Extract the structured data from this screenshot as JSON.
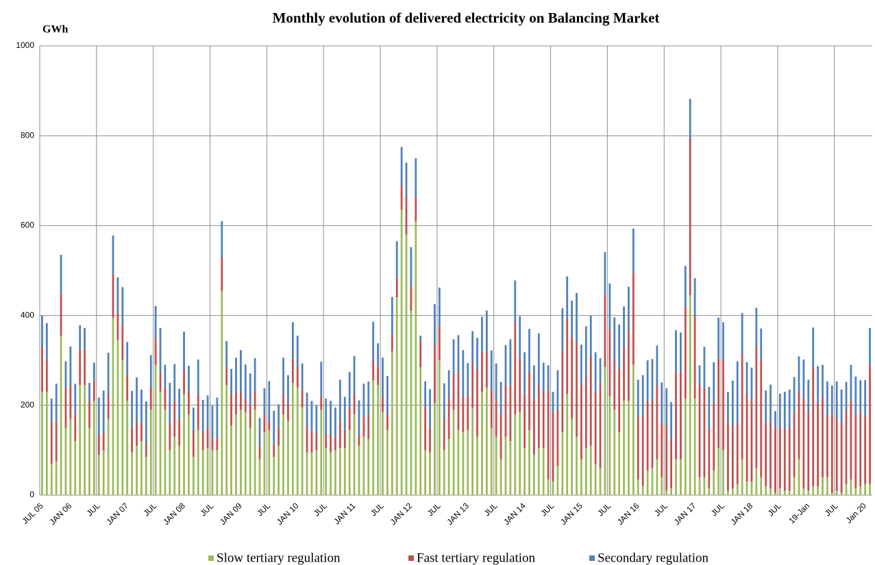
{
  "chart_data": {
    "type": "stacked_bar",
    "title": "Monthly evolution of delivered electricity on Balancing Market",
    "y_label": "GWh",
    "categories": [
      "JUL 05",
      null,
      null,
      null,
      null,
      null,
      "JAN 06",
      null,
      null,
      null,
      null,
      null,
      "JUL",
      null,
      null,
      null,
      null,
      null,
      "JAN 07",
      null,
      null,
      null,
      null,
      null,
      "JUL",
      null,
      null,
      null,
      null,
      null,
      "JAN 08",
      null,
      null,
      null,
      null,
      null,
      "JUL",
      null,
      null,
      null,
      null,
      null,
      "JAN 09",
      null,
      null,
      null,
      null,
      null,
      "JUL",
      null,
      null,
      null,
      null,
      null,
      "JAN 10",
      null,
      null,
      null,
      null,
      null,
      "JUL",
      null,
      null,
      null,
      null,
      null,
      "JAN 11",
      null,
      null,
      null,
      null,
      null,
      "JUL",
      null,
      null,
      null,
      null,
      null,
      "JAN 12",
      null,
      null,
      null,
      null,
      null,
      "JUL",
      null,
      null,
      null,
      null,
      null,
      "JAN 13",
      null,
      null,
      null,
      null,
      null,
      "JUL",
      null,
      null,
      null,
      null,
      null,
      "JAN 14",
      null,
      null,
      null,
      null,
      null,
      "JUL",
      null,
      null,
      null,
      null,
      null,
      "JAN 15",
      null,
      null,
      null,
      null,
      null,
      "JUL",
      null,
      null,
      null,
      null,
      null,
      "JAN 16",
      null,
      null,
      null,
      null,
      null,
      "JUL",
      null,
      null,
      null,
      null,
      null,
      "JAN 17",
      null,
      null,
      null,
      null,
      null,
      "JUL",
      null,
      null,
      null,
      null,
      null,
      "JAN 18",
      null,
      null,
      null,
      null,
      null,
      "JUL",
      null,
      null,
      null,
      null,
      null,
      "19-Jan",
      null,
      null,
      null,
      null,
      null,
      "JUL",
      null,
      null,
      null,
      null,
      null,
      "Jan 20",
      null
    ],
    "series": [
      {
        "name": "Slow tertiary regulation",
        "color": "#9bbb59",
        "values": [
          230,
          230,
          70,
          75,
          355,
          150,
          170,
          120,
          245,
          245,
          150,
          210,
          90,
          100,
          170,
          395,
          345,
          300,
          210,
          95,
          110,
          120,
          85,
          190,
          290,
          230,
          190,
          100,
          130,
          110,
          225,
          180,
          85,
          145,
          100,
          105,
          100,
          100,
          455,
          245,
          155,
          180,
          190,
          185,
          150,
          190,
          80,
          140,
          145,
          85,
          110,
          180,
          165,
          250,
          240,
          195,
          95,
          95,
          100,
          190,
          105,
          95,
          100,
          105,
          105,
          145,
          180,
          110,
          130,
          125,
          255,
          245,
          185,
          145,
          320,
          440,
          635,
          580,
          410,
          610,
          285,
          100,
          95,
          205,
          300,
          100,
          125,
          190,
          145,
          140,
          145,
          195,
          130,
          230,
          240,
          150,
          130,
          80,
          130,
          120,
          180,
          185,
          105,
          145,
          90,
          105,
          105,
          35,
          30,
          65,
          140,
          225,
          170,
          130,
          80,
          105,
          110,
          70,
          60,
          285,
          220,
          190,
          140,
          210,
          210,
          290,
          35,
          20,
          55,
          60,
          80,
          40,
          10,
          15,
          80,
          80,
          215,
          445,
          215,
          40,
          40,
          15,
          55,
          105,
          100,
          10,
          15,
          25,
          80,
          30,
          30,
          60,
          40,
          20,
          15,
          5,
          15,
          10,
          10,
          40,
          80,
          15,
          10,
          20,
          20,
          40,
          40,
          5,
          10,
          5,
          25,
          35,
          15,
          20,
          25,
          25
        ]
      },
      {
        "name": "Fast tertiary regulation",
        "color": "#c0504d",
        "values": [
          100,
          70,
          95,
          90,
          95,
          90,
          75,
          60,
          80,
          80,
          60,
          45,
          45,
          40,
          55,
          97,
          60,
          80,
          60,
          55,
          55,
          40,
          30,
          50,
          60,
          45,
          50,
          60,
          80,
          60,
          55,
          50,
          60,
          80,
          40,
          45,
          25,
          30,
          75,
          40,
          70,
          50,
          40,
          30,
          50,
          40,
          30,
          40,
          20,
          30,
          40,
          45,
          40,
          55,
          45,
          40,
          60,
          45,
          40,
          30,
          30,
          40,
          30,
          60,
          40,
          50,
          45,
          25,
          45,
          55,
          45,
          40,
          35,
          35,
          40,
          45,
          55,
          85,
          55,
          55,
          60,
          95,
          55,
          130,
          75,
          70,
          90,
          80,
          130,
          80,
          75,
          100,
          150,
          90,
          80,
          85,
          80,
          100,
          115,
          125,
          205,
          120,
          120,
          130,
          125,
          140,
          125,
          200,
          155,
          125,
          180,
          170,
          180,
          210,
          165,
          160,
          200,
          160,
          190,
          160,
          150,
          110,
          140,
          120,
          155,
          205,
          140,
          155,
          155,
          155,
          165,
          120,
          145,
          110,
          195,
          195,
          205,
          350,
          185,
          205,
          200,
          135,
          150,
          200,
          200,
          150,
          140,
          135,
          235,
          195,
          180,
          270,
          260,
          140,
          150,
          145,
          135,
          140,
          140,
          145,
          150,
          200,
          175,
          265,
          185,
          180,
          140,
          175,
          160,
          155,
          165,
          175,
          165,
          165,
          150,
          265
        ]
      },
      {
        "name": "Secondary regulation",
        "color": "#4f81bd",
        "values": [
          70,
          83,
          50,
          83,
          85,
          58,
          86,
          68,
          53,
          47,
          40,
          40,
          82,
          93,
          92,
          86,
          80,
          83,
          71,
          82,
          97,
          75,
          94,
          72,
          71,
          97,
          50,
          90,
          82,
          67,
          84,
          58,
          50,
          77,
          72,
          72,
          74,
          87,
          80,
          58,
          56,
          76,
          93,
          76,
          71,
          75,
          62,
          58,
          89,
          73,
          52,
          81,
          62,
          80,
          70,
          58,
          73,
          70,
          60,
          77,
          80,
          75,
          65,
          92,
          74,
          79,
          85,
          76,
          73,
          73,
          86,
          53,
          86,
          85,
          81,
          80,
          85,
          75,
          87,
          85,
          10,
          58,
          86,
          90,
          87,
          79,
          63,
          77,
          81,
          103,
          74,
          70,
          70,
          77,
          91,
          87,
          83,
          72,
          89,
          102,
          93,
          93,
          93,
          95,
          74,
          115,
          65,
          54,
          45,
          88,
          96,
          92,
          83,
          110,
          90,
          111,
          90,
          88,
          55,
          96,
          101,
          96,
          100,
          90,
          99,
          98,
          82,
          92,
          90,
          88,
          88,
          91,
          83,
          82,
          92,
          87,
          90,
          87,
          83,
          44,
          90,
          91,
          91,
          90,
          85,
          70,
          100,
          138,
          90,
          71,
          74,
          87,
          71,
          73,
          81,
          37,
          76,
          80,
          85,
          78,
          79,
          87,
          72,
          88,
          82,
          70,
          73,
          64,
          83,
          75,
          62,
          80,
          84,
          71,
          81,
          82
        ]
      }
    ],
    "ylim": [
      0,
      1000
    ],
    "yticks": [
      0,
      200,
      400,
      600,
      800,
      1000
    ],
    "grid": true,
    "legend": "bottom"
  }
}
